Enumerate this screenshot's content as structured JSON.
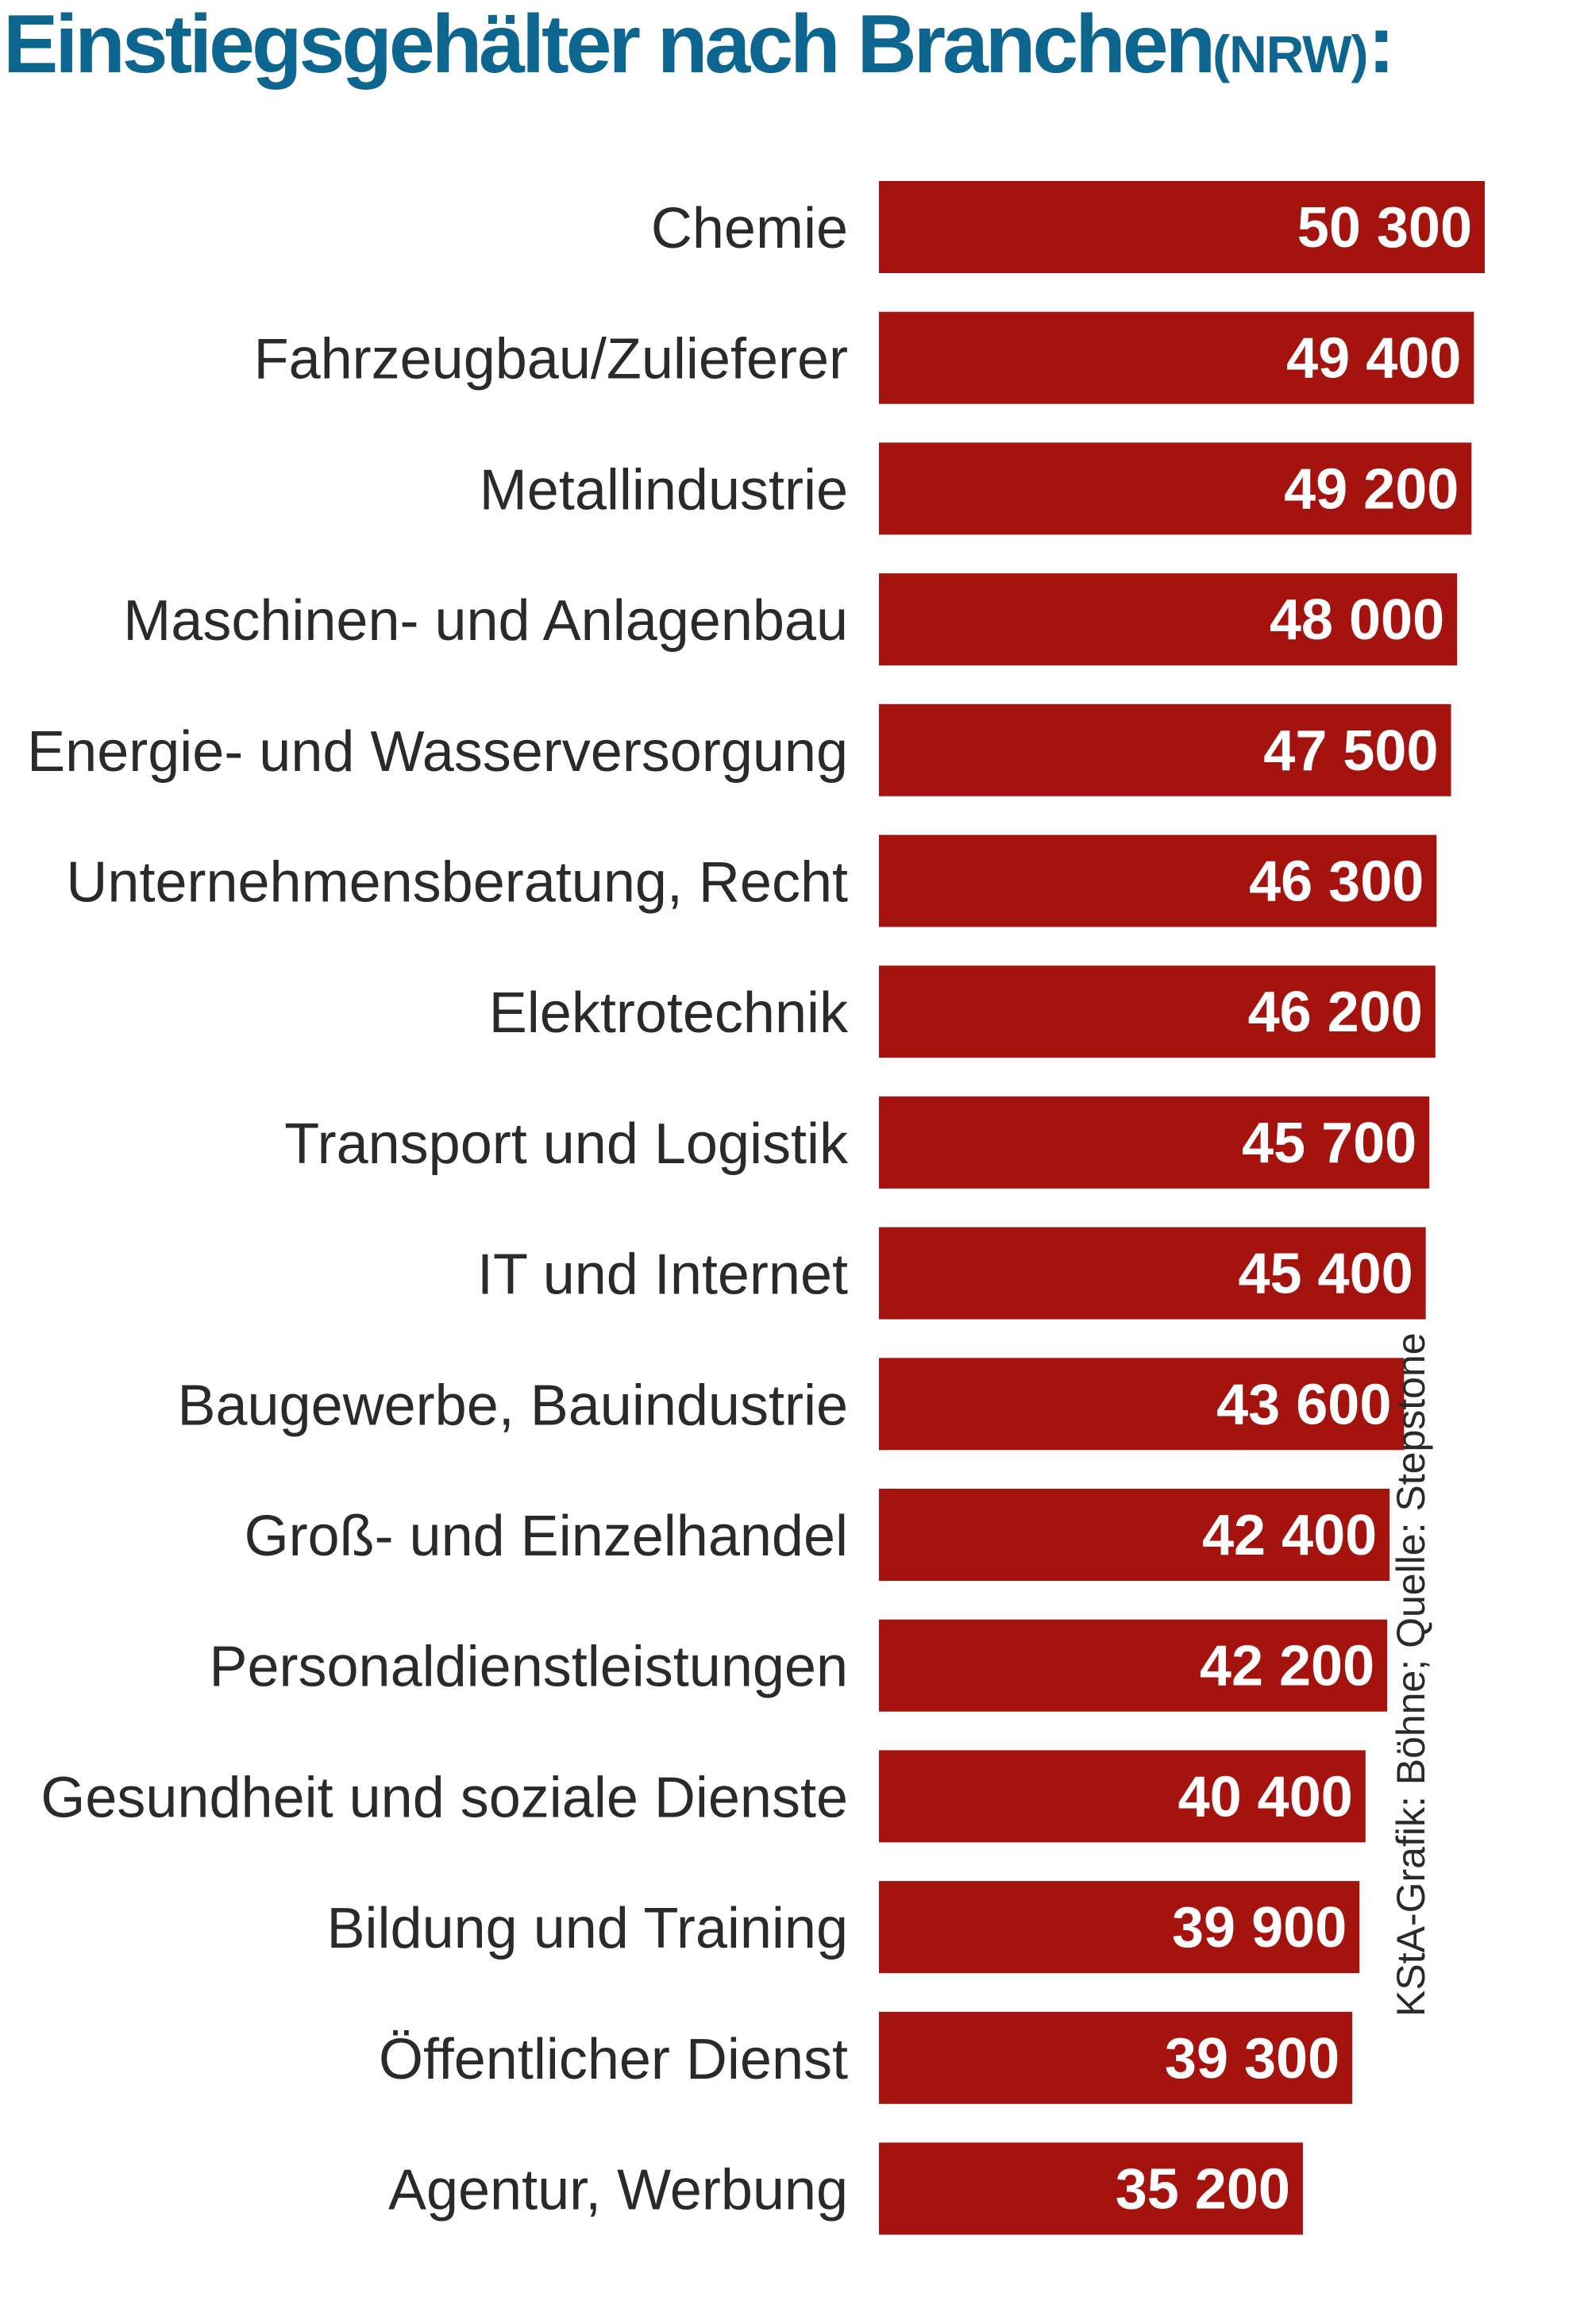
{
  "title": {
    "main": "Einstiegsgehälter nach Branchen",
    "region": "(NRW)",
    "colon": ":"
  },
  "source": "KStA-Grafik: Böhne; Quelle: Stepstone",
  "colors": {
    "title": "#0c6690",
    "bar": "#a5130f",
    "bar_label": "#ffffff",
    "category_label": "#2a2a2a"
  },
  "chart_data": {
    "type": "bar",
    "orientation": "horizontal",
    "title": "Einstiegsgehälter nach Branchen (NRW):",
    "xlabel": "",
    "ylabel": "",
    "xlim": [
      0,
      50300
    ],
    "categories": [
      "Chemie",
      "Fahrzeugbau/Zulieferer",
      "Metallindustrie",
      "Maschinen- und Anlagenbau",
      "Energie- und Wasserversorgung",
      "Unternehmensberatung, Recht",
      "Elektrotechnik",
      "Transport und Logistik",
      "IT und Internet",
      "Baugewerbe, Bauindustrie",
      "Groß- und Einzelhandel",
      "Personaldienstleistungen",
      "Gesundheit und soziale Dienste",
      "Bildung und Training",
      "Öffentlicher Dienst",
      "Agentur,  Werbung"
    ],
    "values": [
      50300,
      49400,
      49200,
      48000,
      47500,
      46300,
      46200,
      45700,
      45400,
      43600,
      42400,
      42200,
      40400,
      39900,
      39300,
      35200
    ],
    "value_labels": [
      "50 300",
      "49 400",
      "49 200",
      "48 000",
      "47 500",
      "46 300",
      "46 200",
      "45 700",
      "45 400",
      "43 600",
      "42 400",
      "42 200",
      "40 400",
      "39 900",
      "39 300",
      "35 200"
    ]
  }
}
